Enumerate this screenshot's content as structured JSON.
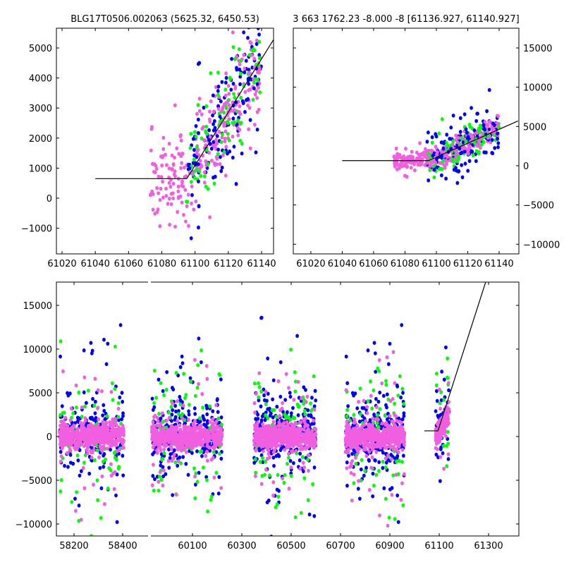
{
  "chart_data": [
    {
      "type": "scatter",
      "title": "BLG17T0506.002063 (5625.32, 6450.53)",
      "xlim": [
        61016.6,
        61147.2
      ],
      "ylim": [
        -1854,
        5657
      ],
      "xticks": [
        61020,
        61040,
        61060,
        61080,
        61100,
        61120,
        61140
      ],
      "yticks": [
        -1000,
        0,
        1000,
        2000,
        3000,
        4000,
        5000
      ],
      "yaxis_side": "left",
      "grid": false,
      "model_line": [
        [
          61040,
          650
        ],
        [
          61095,
          650
        ],
        [
          61152,
          5700
        ]
      ],
      "series": [
        {
          "name": "pink",
          "color": "#f15ee0",
          "x_range": [
            61073,
            61140
          ],
          "n": 260,
          "noise": 700
        },
        {
          "name": "blue",
          "color": "#0000ff",
          "x_range": [
            61094,
            61140
          ],
          "n": 150,
          "noise": 900
        },
        {
          "name": "green",
          "color": "#00ff00",
          "x_range": [
            61094,
            61140
          ],
          "n": 90,
          "noise": 900
        }
      ]
    },
    {
      "type": "scatter",
      "title": "3 663 1762.23 -8.000 -8 [61136.927, 61140.927]",
      "xlim": [
        61008.8,
        61152.6
      ],
      "ylim": [
        -11230,
        17515
      ],
      "xticks": [
        61020,
        61040,
        61060,
        61080,
        61100,
        61120,
        61140
      ],
      "yticks": [
        -10000,
        -5000,
        0,
        5000,
        10000,
        15000
      ],
      "yaxis_side": "right",
      "grid": false,
      "model_line": [
        [
          61040,
          650
        ],
        [
          61095,
          650
        ],
        [
          61152,
          5700
        ]
      ],
      "series": [
        {
          "name": "pink",
          "color": "#f15ee0",
          "x_range": [
            61073,
            61140
          ],
          "n": 300,
          "noise": 700
        },
        {
          "name": "blue",
          "color": "#0000ff",
          "x_range": [
            61094,
            61140
          ],
          "n": 160,
          "noise": 1400
        },
        {
          "name": "green",
          "color": "#00ff00",
          "x_range": [
            61094,
            61140
          ],
          "n": 90,
          "noise": 1400
        }
      ]
    },
    {
      "type": "scatter",
      "title": "",
      "broken_x_axis": true,
      "segments": [
        [
          58128,
          58420
        ],
        [
          59926,
          61400
        ]
      ],
      "ylim": [
        -11371,
        17661
      ],
      "xticks": [
        58200,
        58400,
        60100,
        60300,
        60500,
        60700,
        60900,
        61100,
        61300
      ],
      "yticks": [
        -10000,
        -5000,
        0,
        5000,
        10000,
        15000
      ],
      "yaxis_side": "left",
      "grid": false,
      "model_line": [
        [
          61040,
          650
        ],
        [
          61095,
          650
        ],
        [
          61300,
          18700
        ]
      ],
      "seasons": [
        {
          "x_range": [
            58140,
            58405
          ],
          "n_pink": 500,
          "n_blue": 200,
          "n_green": 70
        },
        {
          "x_range": [
            59935,
            60220
          ],
          "n_pink": 550,
          "n_blue": 260,
          "n_green": 80
        },
        {
          "x_range": [
            60350,
            60600
          ],
          "n_pink": 550,
          "n_blue": 280,
          "n_green": 80
        },
        {
          "x_range": [
            60720,
            60960
          ],
          "n_pink": 550,
          "n_blue": 260,
          "n_green": 80
        },
        {
          "x_range": [
            61085,
            61140
          ],
          "n_pink": 120,
          "n_blue": 50,
          "n_green": 15
        }
      ],
      "colors": {
        "pink": "#f15ee0",
        "blue": "#0000ff",
        "green": "#00ff00"
      }
    }
  ]
}
